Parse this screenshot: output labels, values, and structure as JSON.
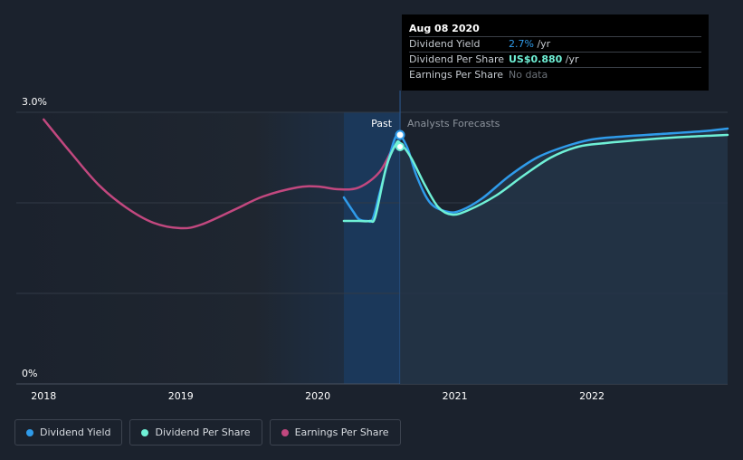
{
  "tooltip": {
    "date": "Aug 08 2020",
    "rows": [
      {
        "label": "Dividend Yield",
        "value": "2.7%",
        "unit": " /yr"
      },
      {
        "label": "Dividend Per Share",
        "value": "US$0.880",
        "unit": " /yr"
      },
      {
        "label": "Earnings Per Share",
        "value": "No data",
        "unit": ""
      }
    ]
  },
  "annotations": {
    "past": "Past",
    "forecast": "Analysts Forecasts"
  },
  "legend": [
    {
      "label": "Dividend Yield",
      "color": "#2f9bea"
    },
    {
      "label": "Dividend Per Share",
      "color": "#6ff0d6"
    },
    {
      "label": "Earnings Per Share",
      "color": "#c2487f"
    }
  ],
  "chart_data": {
    "type": "line",
    "x_ticks": [
      "2018",
      "2019",
      "2020",
      "2021",
      "2022"
    ],
    "y_ticks": [
      "3.0%",
      "0%"
    ],
    "xlim": [
      2017.8,
      2022.99
    ],
    "ylim": [
      0,
      3.0
    ],
    "today": 2020.6,
    "series": [
      {
        "name": "Dividend Yield",
        "color": "#2f9bea",
        "points": [
          [
            2020.19,
            2.06
          ],
          [
            2020.26,
            1.9
          ],
          [
            2020.3,
            1.82
          ],
          [
            2020.36,
            1.8
          ],
          [
            2020.4,
            1.82
          ],
          [
            2020.45,
            2.1
          ],
          [
            2020.52,
            2.5
          ],
          [
            2020.58,
            2.75
          ],
          [
            2020.65,
            2.62
          ],
          [
            2020.72,
            2.3
          ],
          [
            2020.82,
            2.0
          ],
          [
            2020.95,
            1.9
          ],
          [
            2021.05,
            1.92
          ],
          [
            2021.2,
            2.05
          ],
          [
            2021.4,
            2.3
          ],
          [
            2021.6,
            2.5
          ],
          [
            2021.8,
            2.62
          ],
          [
            2022.0,
            2.7
          ],
          [
            2022.2,
            2.73
          ],
          [
            2022.5,
            2.76
          ],
          [
            2022.8,
            2.79
          ],
          [
            2022.99,
            2.82
          ]
        ]
      },
      {
        "name": "Dividend Per Share",
        "color": "#6ff0d6",
        "points": [
          [
            2020.19,
            1.8
          ],
          [
            2020.3,
            1.8
          ],
          [
            2020.38,
            1.8
          ],
          [
            2020.42,
            1.85
          ],
          [
            2020.5,
            2.4
          ],
          [
            2020.57,
            2.65
          ],
          [
            2020.6,
            2.66
          ],
          [
            2020.68,
            2.5
          ],
          [
            2020.78,
            2.2
          ],
          [
            2020.88,
            1.95
          ],
          [
            2020.98,
            1.87
          ],
          [
            2021.1,
            1.92
          ],
          [
            2021.3,
            2.08
          ],
          [
            2021.5,
            2.3
          ],
          [
            2021.7,
            2.5
          ],
          [
            2021.9,
            2.62
          ],
          [
            2022.1,
            2.66
          ],
          [
            2022.4,
            2.7
          ],
          [
            2022.7,
            2.73
          ],
          [
            2022.99,
            2.75
          ]
        ]
      },
      {
        "name": "Earnings Per Share",
        "color": "#c2487f",
        "points": [
          [
            2018.0,
            2.92
          ],
          [
            2018.2,
            2.55
          ],
          [
            2018.4,
            2.2
          ],
          [
            2018.6,
            1.95
          ],
          [
            2018.8,
            1.78
          ],
          [
            2019.0,
            1.72
          ],
          [
            2019.15,
            1.76
          ],
          [
            2019.4,
            1.93
          ],
          [
            2019.6,
            2.07
          ],
          [
            2019.85,
            2.17
          ],
          [
            2020.0,
            2.18
          ],
          [
            2020.15,
            2.15
          ],
          [
            2020.3,
            2.17
          ],
          [
            2020.45,
            2.34
          ],
          [
            2020.55,
            2.62
          ]
        ]
      }
    ]
  }
}
